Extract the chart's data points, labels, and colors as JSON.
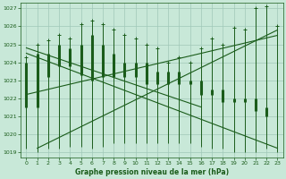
{
  "title": "Graphe pression niveau de la mer (hPa)",
  "bg_color": "#c8e8d8",
  "grid_color": "#a0c8b8",
  "line_color": "#1a5c1a",
  "ylim": [
    1018.7,
    1027.3
  ],
  "xlim": [
    -0.5,
    23.5
  ],
  "yticks": [
    1019,
    1020,
    1021,
    1022,
    1023,
    1024,
    1025,
    1026,
    1027
  ],
  "xticks": [
    0,
    1,
    2,
    3,
    4,
    5,
    6,
    7,
    8,
    9,
    10,
    11,
    12,
    13,
    14,
    15,
    16,
    17,
    18,
    19,
    20,
    21,
    22,
    23
  ],
  "hours": [
    0,
    1,
    2,
    3,
    4,
    5,
    6,
    7,
    8,
    9,
    10,
    11,
    12,
    13,
    14,
    15,
    16,
    17,
    18,
    19,
    20,
    21,
    22,
    23
  ],
  "high": [
    1024.3,
    1025.0,
    1025.2,
    1025.5,
    1025.3,
    1026.1,
    1026.3,
    1026.1,
    1025.8,
    1025.5,
    1025.3,
    1025.0,
    1024.8,
    1024.0,
    1024.3,
    1024.0,
    1024.8,
    1025.3,
    1025.0,
    1025.9,
    1025.8,
    1027.0,
    1027.1,
    1026.0
  ],
  "low": [
    1019.2,
    1019.0,
    1019.2,
    1019.2,
    1019.3,
    1019.3,
    1019.2,
    1019.3,
    1019.5,
    1019.5,
    1019.5,
    1019.5,
    1019.5,
    1019.5,
    1019.5,
    1019.5,
    1019.3,
    1019.2,
    1019.2,
    1019.0,
    1019.0,
    1019.0,
    1019.2,
    1019.0
  ],
  "mid_lo": [
    1021.5,
    1021.5,
    1023.2,
    1023.8,
    1023.8,
    1023.3,
    1023.0,
    1023.2,
    1023.2,
    1023.2,
    1023.2,
    1022.8,
    1022.8,
    1022.8,
    1022.8,
    1022.8,
    1022.2,
    1022.2,
    1021.8,
    1021.8,
    1021.8,
    1021.3,
    1021.0,
    1021.0
  ],
  "mid_hi": [
    1024.0,
    1024.5,
    1024.5,
    1025.0,
    1024.8,
    1025.0,
    1025.5,
    1025.0,
    1024.5,
    1024.0,
    1024.0,
    1024.0,
    1023.5,
    1023.5,
    1023.5,
    1023.0,
    1023.0,
    1022.5,
    1022.5,
    1022.0,
    1022.0,
    1022.0,
    1021.5,
    1021.0
  ],
  "trend_lines": [
    {
      "x": [
        0,
        23
      ],
      "y": [
        1024.5,
        1019.2
      ]
    },
    {
      "x": [
        0,
        23
      ],
      "y": [
        1022.2,
        1025.5
      ]
    },
    {
      "x": [
        1,
        23
      ],
      "y": [
        1019.2,
        1025.8
      ]
    },
    {
      "x": [
        0,
        16
      ],
      "y": [
        1024.8,
        1021.5
      ]
    }
  ]
}
